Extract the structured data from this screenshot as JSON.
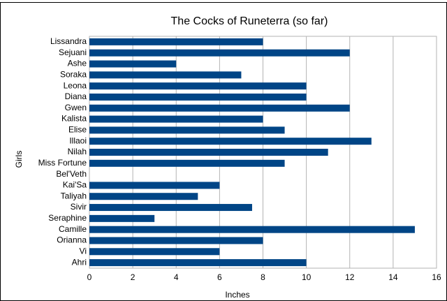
{
  "chart_data": {
    "type": "hbar",
    "title": "The Cocks of Runeterra (so far)",
    "x_label": "Inches",
    "y_label": "Girls",
    "categories": [
      "Lissandra",
      "Sejuani",
      "Ashe",
      "Soraka",
      "Leona",
      "Diana",
      "Gwen",
      "Kalista",
      "Elise",
      "Illaoi",
      "Nilah",
      "Miss Fortune",
      "Bel'Veth",
      "Kai'Sa",
      "Taliyah",
      "Sivir",
      "Seraphine",
      "Camille",
      "Orianna",
      "Vi",
      "Ahri"
    ],
    "values": [
      8,
      12,
      4,
      7,
      10,
      10,
      12,
      8,
      9,
      13,
      11,
      9,
      null,
      6,
      5,
      7.5,
      3,
      15,
      8,
      6,
      10
    ],
    "color": "#004586",
    "xlim": [
      0,
      16
    ],
    "xticks": [
      0,
      2,
      4,
      6,
      8,
      10,
      12,
      14,
      16
    ],
    "grid": true
  }
}
